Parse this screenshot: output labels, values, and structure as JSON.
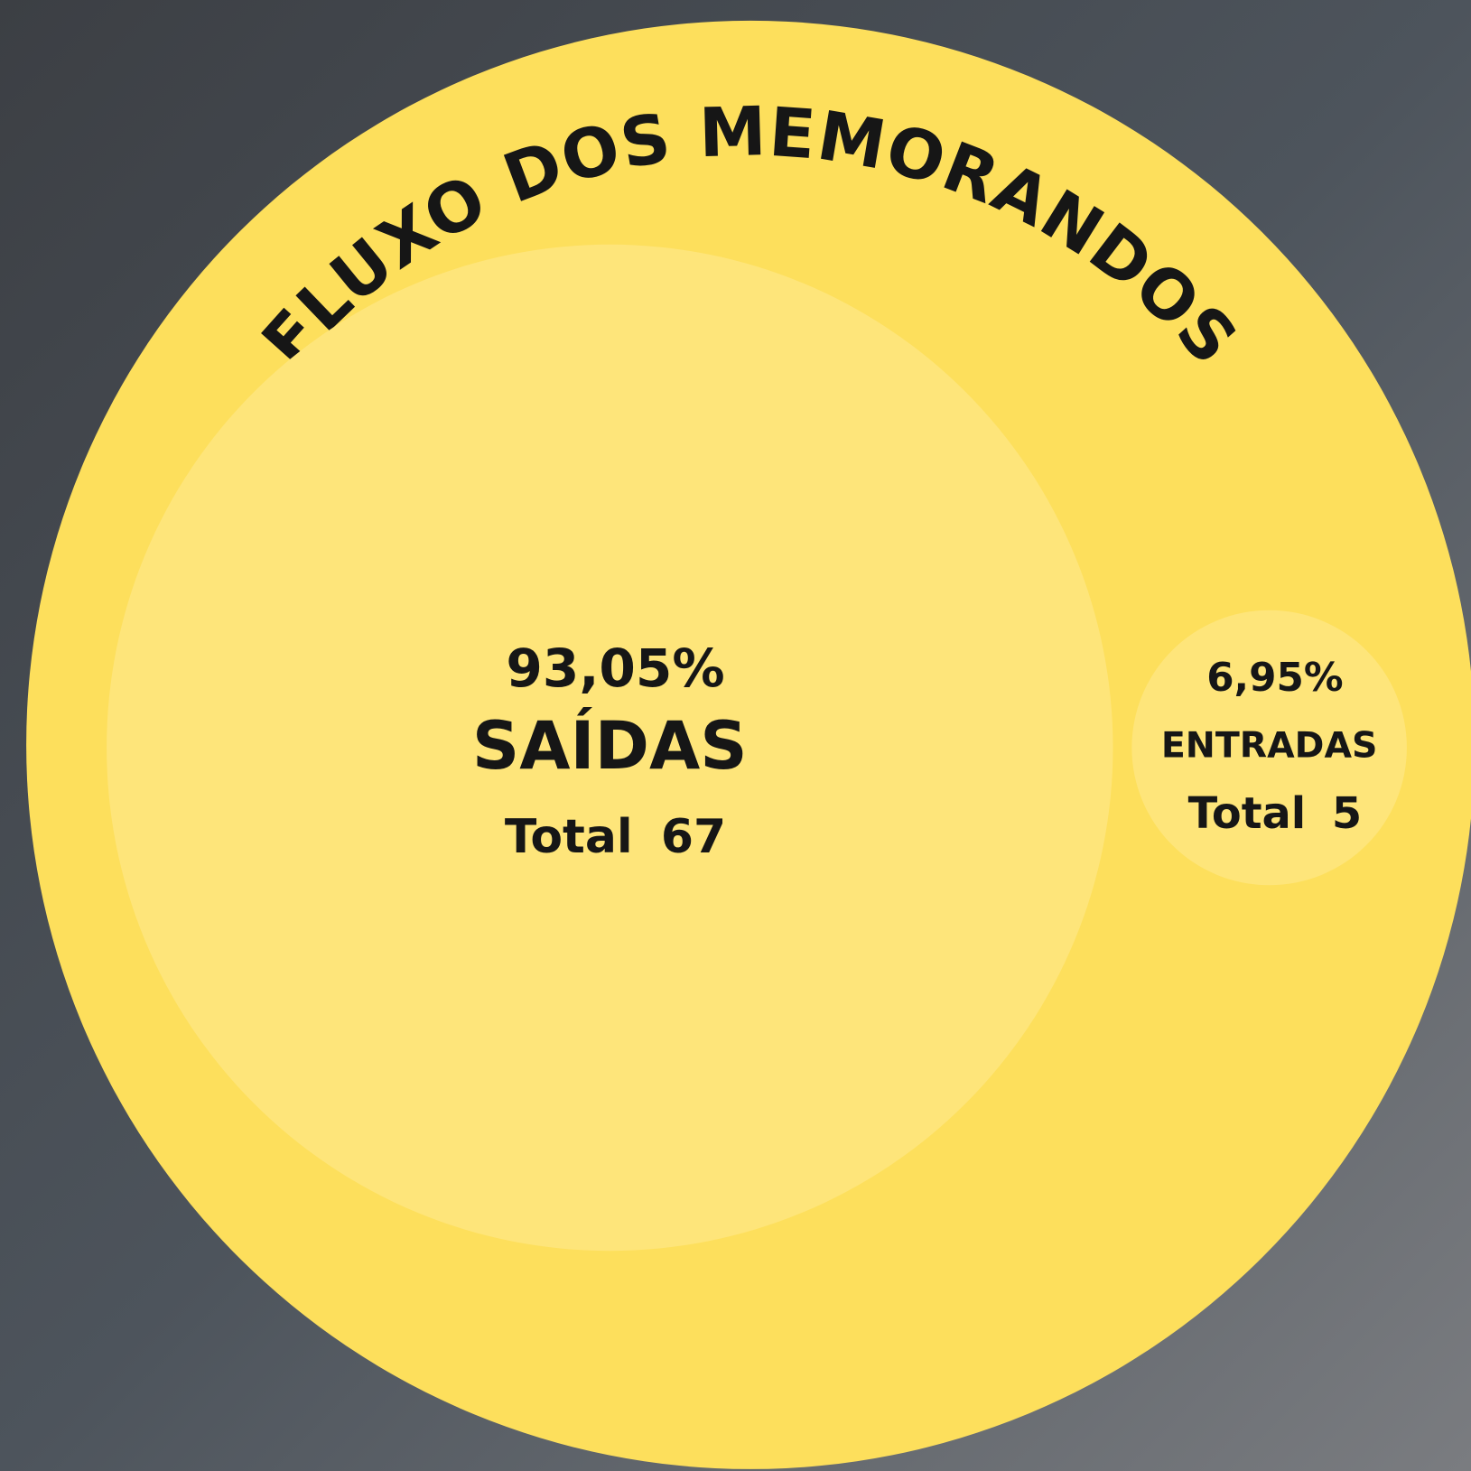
{
  "chart_data": {
    "type": "bubble",
    "title": "FLUXO DOS MEMORANDOS",
    "categories": [
      "SAÍDAS",
      "ENTRADAS"
    ],
    "values": [
      93.05,
      6.95
    ],
    "value_labels": [
      "93,05%",
      "6,95%"
    ],
    "total_label": "Total",
    "totals": [
      67,
      5
    ],
    "color": "#fee57a"
  }
}
